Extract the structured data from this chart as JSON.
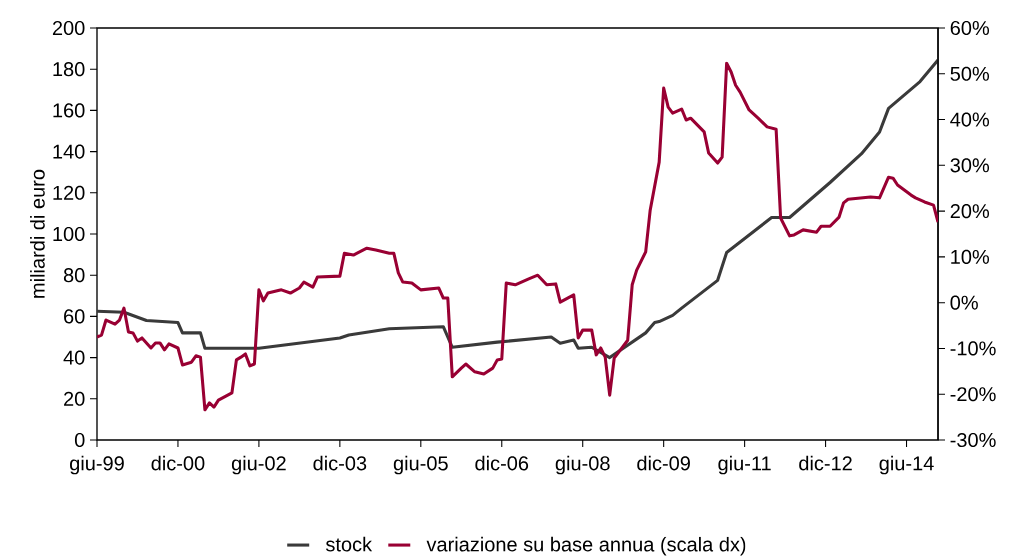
{
  "chart_data": {
    "type": "line",
    "ylabel": "miliardi di euro",
    "xlim": [
      "1999-06",
      "2015-01"
    ],
    "xticks": [
      {
        "value": "1999-06",
        "label": "giu-99"
      },
      {
        "value": "2000-12",
        "label": "dic-00"
      },
      {
        "value": "2002-06",
        "label": "giu-02"
      },
      {
        "value": "2003-12",
        "label": "dic-03"
      },
      {
        "value": "2005-06",
        "label": "giu-05"
      },
      {
        "value": "2006-12",
        "label": "dic-06"
      },
      {
        "value": "2008-06",
        "label": "giu-08"
      },
      {
        "value": "2009-12",
        "label": "dic-09"
      },
      {
        "value": "2011-06",
        "label": "giu-11"
      },
      {
        "value": "2012-12",
        "label": "dic-12"
      },
      {
        "value": "2014-06",
        "label": "giu-14"
      }
    ],
    "ylim": [
      0,
      200
    ],
    "yticks": [
      0,
      20,
      40,
      60,
      80,
      100,
      120,
      140,
      160,
      180,
      200
    ],
    "y2lim": [
      -30,
      60
    ],
    "y2ticks": [
      {
        "value": -30,
        "label": "-30%"
      },
      {
        "value": -20,
        "label": "-20%"
      },
      {
        "value": -10,
        "label": "-10%"
      },
      {
        "value": 0,
        "label": "0%"
      },
      {
        "value": 10,
        "label": "10%"
      },
      {
        "value": 20,
        "label": "20%"
      },
      {
        "value": 30,
        "label": "30%"
      },
      {
        "value": 40,
        "label": "40%"
      },
      {
        "value": 50,
        "label": "50%"
      },
      {
        "value": 60,
        "label": "60%"
      }
    ],
    "legend": "bottom",
    "line_style": "solid",
    "series": [
      {
        "name": "stock",
        "color": "#3a3a3a",
        "x": [
          "1999-06",
          "1999-12",
          "2000-05",
          "2000-12",
          "2001-01",
          "2001-05",
          "2001-06",
          "2002-06",
          "2003-12",
          "2004-02",
          "2004-11",
          "2005-11",
          "2006-01",
          "2006-11",
          "2007-11",
          "2008-01",
          "2008-04",
          "2008-05",
          "2008-08",
          "2008-12",
          "2009-08",
          "2009-10",
          "2009-11",
          "2010-02",
          "2010-04",
          "2010-12",
          "2011-02",
          "2011-12",
          "2012-04",
          "2013-01",
          "2013-08",
          "2013-12",
          "2014-02",
          "2014-09",
          "2015-01"
        ],
        "values": [
          62.5,
          62,
          58,
          57,
          52,
          52,
          44.5,
          44.5,
          49.5,
          51,
          54,
          55,
          45,
          47.5,
          50,
          47,
          48.5,
          44.5,
          45,
          40,
          52,
          57,
          57.5,
          60.5,
          64,
          77.5,
          91,
          108,
          108,
          125,
          139,
          149.5,
          161,
          174,
          184.5
        ]
      },
      {
        "name": "variazione su base annua (scala dx)",
        "color": "#990033",
        "axis": "y2",
        "x": [
          "1999-06",
          "1999-07",
          "1999-08",
          "1999-10",
          "1999-11",
          "1999-12",
          "2000-01",
          "2000-02",
          "2000-03",
          "2000-04",
          "2000-06",
          "2000-07",
          "2000-08",
          "2000-09",
          "2000-10",
          "2000-12",
          "2001-01",
          "2001-03",
          "2001-04",
          "2001-05",
          "2001-06",
          "2001-07",
          "2001-08",
          "2001-09",
          "2001-12",
          "2002-01",
          "2002-02",
          "2002-03",
          "2002-04",
          "2002-05",
          "2002-06",
          "2002-07",
          "2002-08",
          "2002-11",
          "2003-01",
          "2003-03",
          "2003-04",
          "2003-06",
          "2003-07",
          "2003-12",
          "2004-01",
          "2004-03",
          "2004-06",
          "2004-08",
          "2004-11",
          "2004-12",
          "2005-01",
          "2005-02",
          "2005-04",
          "2005-06",
          "2005-10",
          "2005-11",
          "2005-12",
          "2006-01",
          "2006-03",
          "2006-04",
          "2006-06",
          "2006-08",
          "2006-10",
          "2006-11",
          "2006-12",
          "2007-01",
          "2007-03",
          "2007-06",
          "2007-08",
          "2007-10",
          "2007-12",
          "2008-01",
          "2008-04",
          "2008-05",
          "2008-06",
          "2008-08",
          "2008-09",
          "2008-10",
          "2008-11",
          "2008-12",
          "2009-01",
          "2009-04",
          "2009-05",
          "2009-06",
          "2009-08",
          "2009-09",
          "2009-11",
          "2009-12",
          "2010-01",
          "2010-02",
          "2010-04",
          "2010-05",
          "2010-06",
          "2010-09",
          "2010-10",
          "2010-12",
          "2011-01",
          "2011-02",
          "2011-03",
          "2011-04",
          "2011-05",
          "2011-07",
          "2011-09",
          "2011-11",
          "2012-01",
          "2012-02",
          "2012-04",
          "2012-05",
          "2012-07",
          "2012-10",
          "2012-11",
          "2013-01",
          "2013-03",
          "2013-04",
          "2013-05",
          "2013-10",
          "2013-12",
          "2014-02",
          "2014-03",
          "2014-04",
          "2014-07",
          "2014-08",
          "2014-10",
          "2014-12",
          "2015-01"
        ],
        "values": [
          -7.5,
          -7.1,
          -3.8,
          -4.7,
          -3.8,
          -1.2,
          -6.4,
          -6.6,
          -8.4,
          -7.7,
          -9.9,
          -8.8,
          -8.8,
          -10.3,
          -9,
          -9.9,
          -13.6,
          -13,
          -11.6,
          -11.9,
          -23.4,
          -21.9,
          -22.8,
          -21.3,
          -19.7,
          -12.5,
          -11.9,
          -11.2,
          -13.8,
          -13.4,
          2.8,
          0.4,
          2.1,
          2.8,
          2.1,
          3.2,
          4.5,
          3.4,
          5.6,
          5.8,
          10.8,
          10.4,
          11.9,
          11.5,
          10.8,
          10.8,
          6.5,
          4.5,
          4.3,
          2.8,
          3.2,
          1,
          1,
          -16.2,
          -14.3,
          -13.4,
          -15.1,
          -15.6,
          -14.3,
          -12.5,
          -12.3,
          4.3,
          3.9,
          5.2,
          6,
          3.9,
          4.1,
          0.1,
          1.7,
          -7.7,
          -6,
          -6,
          -11.4,
          -9.9,
          -11.9,
          -20.2,
          -12.1,
          -8.2,
          3.9,
          7.1,
          11.1,
          20.2,
          30.7,
          46.9,
          42.7,
          41.4,
          42.3,
          39.9,
          40.3,
          37.3,
          32.7,
          30.5,
          31.8,
          52.3,
          50.4,
          47.5,
          46,
          42.1,
          40.3,
          38.4,
          37.9,
          18.5,
          14.6,
          14.8,
          15.9,
          15.4,
          16.7,
          16.7,
          18.7,
          21.8,
          22.6,
          23.1,
          22.9,
          27.4,
          27.2,
          25.7,
          23.5,
          22.9,
          22,
          21.3,
          17.6
        ]
      }
    ]
  }
}
